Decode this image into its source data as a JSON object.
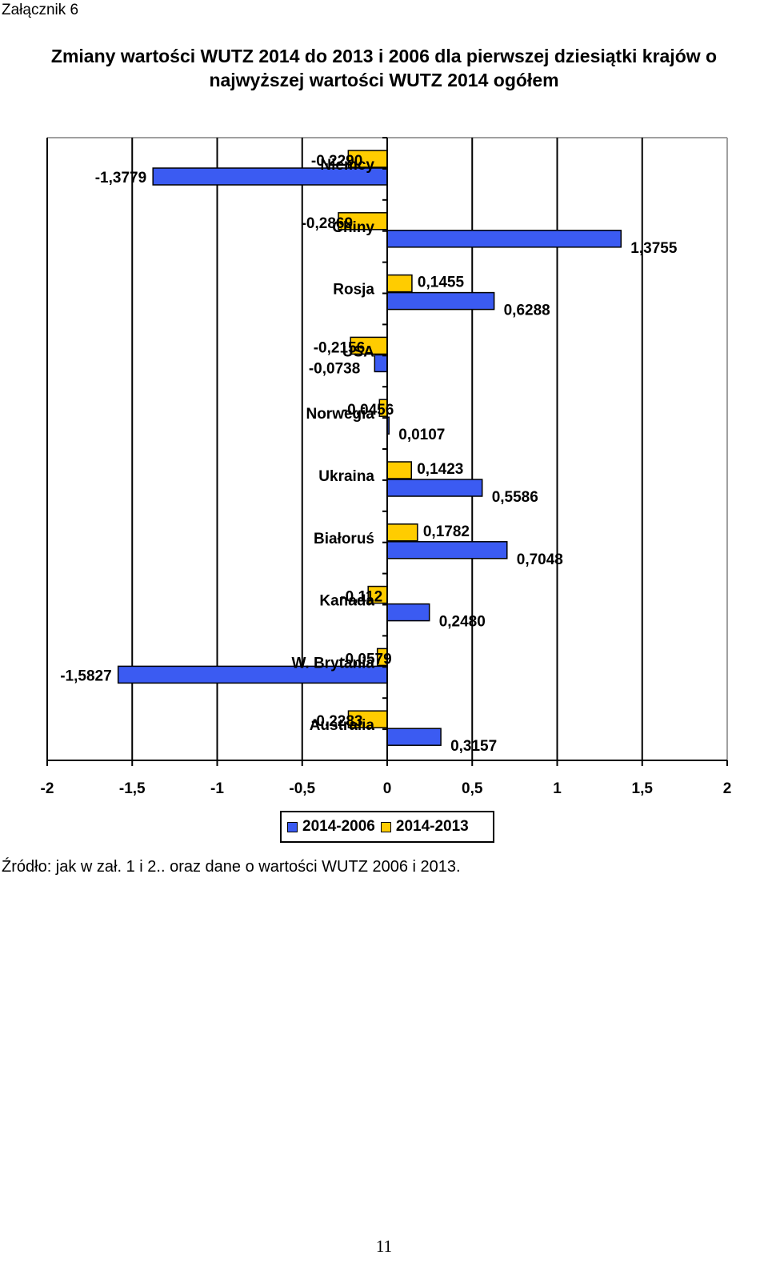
{
  "header": {
    "annex_label": "Załącznik 6"
  },
  "title_lines": [
    "Zmiany wartości WUTZ 2014 do 2013 i 2006 dla pierwszej dziesiątki krajów o",
    "najwyższej wartości WUTZ 2014 ogółem"
  ],
  "colors": {
    "series_2014_2006": "#3b5bf2",
    "series_2014_2013": "#ffcc00"
  },
  "chart_data": {
    "type": "bar",
    "orientation": "horizontal",
    "categories": [
      "Niemcy",
      "Chiny",
      "Rosja",
      "USA",
      "Norwegia",
      "Ukraina",
      "Białoruś",
      "Kanada",
      "W. Brytania",
      "Australia"
    ],
    "series": [
      {
        "name": "2014-2006",
        "values": [
          -1.3779,
          1.3755,
          0.6288,
          -0.0738,
          0.0107,
          0.5586,
          0.7048,
          0.248,
          -1.5827,
          0.3157
        ],
        "labels": [
          "-1,3779",
          "1,3755",
          "0,6288",
          "-0,0738",
          "0,0107",
          "0,5586",
          "0,7048",
          "0,2480",
          "-1,5827",
          "0,3157"
        ]
      },
      {
        "name": "2014-2013",
        "values": [
          -0.229,
          -0.2869,
          0.1455,
          -0.2156,
          -0.0456,
          0.1423,
          0.1782,
          -0.112,
          -0.0579,
          -0.2283
        ],
        "labels": [
          "-0,2290",
          "-0,2869",
          "0,1455",
          "-0,2156",
          "-0,0456",
          "0,1423",
          "0,1782",
          "-0,112",
          "-0,0579",
          "-0,2283"
        ]
      }
    ],
    "xlim": [
      -2,
      2
    ],
    "x_ticks": [
      -2,
      -1.5,
      -1,
      -0.5,
      0,
      0.5,
      1,
      1.5,
      2
    ],
    "x_tick_labels": [
      "-2",
      "-1,5",
      "-1",
      "-0,5",
      "0",
      "0,5",
      "1",
      "1,5",
      "2"
    ],
    "grid": "vertical",
    "legend_position": "bottom"
  },
  "source_note": "Źródło: jak w zał. 1 i 2.. oraz dane o wartości WUTZ 2006 i 2013.",
  "page_number": "11"
}
